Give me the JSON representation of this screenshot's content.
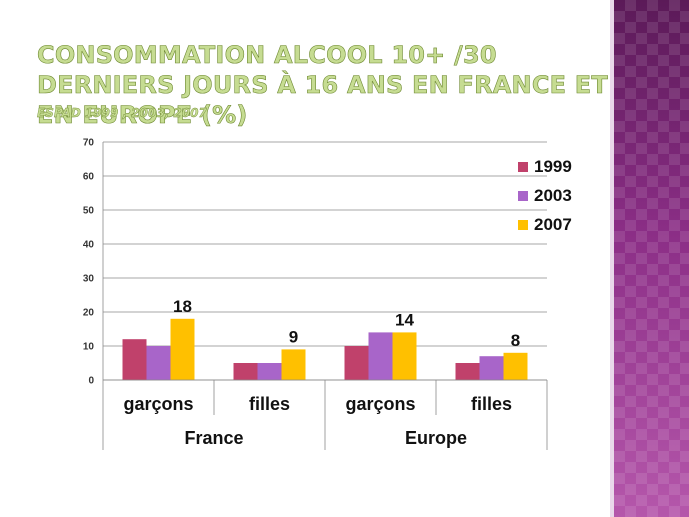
{
  "slide": {
    "title": "CONSOMMATION ALCOOL 10+ /30 DERNIERS JOURS À 16 ANS EN FRANCE ET EN EUROPE (%)",
    "subtitle": "ESPAD 1999 , 2003, 2007"
  },
  "chart_data": {
    "type": "bar",
    "categories": [
      {
        "label": "garçons",
        "group": "France"
      },
      {
        "label": "filles",
        "group": "France"
      },
      {
        "label": "garçons",
        "group": "Europe"
      },
      {
        "label": "filles",
        "group": "Europe"
      }
    ],
    "groups": [
      "France",
      "Europe"
    ],
    "series": [
      {
        "name": "1999",
        "color": "#c0416b",
        "values": [
          12,
          5,
          10,
          5
        ]
      },
      {
        "name": "2003",
        "color": "#a865c9",
        "values": [
          10,
          5,
          14,
          7
        ]
      },
      {
        "name": "2007",
        "color": "#ffc000",
        "values": [
          18,
          9,
          14,
          8
        ]
      }
    ],
    "data_labels": [
      {
        "category_index": 0,
        "series_index": 2,
        "text": "18"
      },
      {
        "category_index": 1,
        "series_index": 2,
        "text": "9"
      },
      {
        "category_index": 2,
        "series_index": 2,
        "text": "14"
      },
      {
        "category_index": 3,
        "series_index": 2,
        "text": "8"
      }
    ],
    "yticks": [
      "0",
      "10",
      "20",
      "30",
      "40",
      "50",
      "60",
      "70"
    ],
    "ylim": [
      0,
      70
    ],
    "grid": true,
    "legend_position": "right"
  }
}
